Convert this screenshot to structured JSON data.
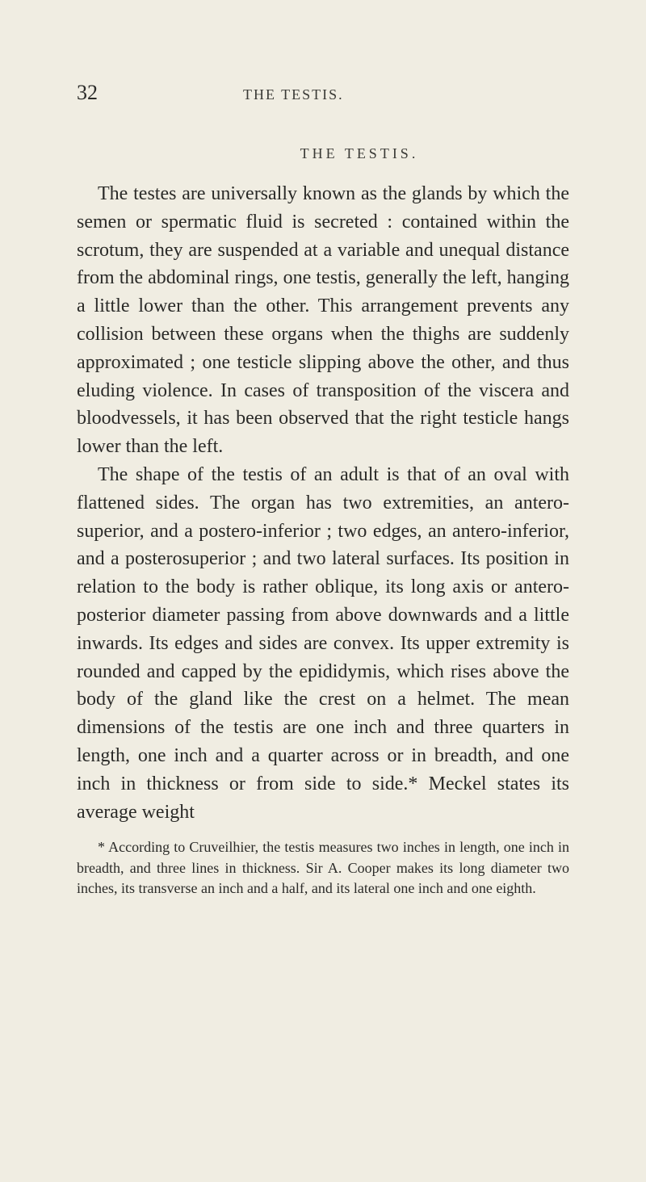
{
  "page": {
    "number": "32",
    "running_head": "THE TESTIS.",
    "section_title": "THE TESTIS.",
    "background_color": "#f0ede2",
    "text_color": "#2a2a28",
    "body_fontsize": 24,
    "header_fontsize": 18,
    "footnote_fontsize": 18,
    "page_number_fontsize": 26
  },
  "paragraphs": {
    "p1": "The testes are universally known as the glands by which the semen or spermatic fluid is secreted : contained within the scrotum, they are suspended at a variable and unequal distance from the ab­dominal rings, one testis, generally the left, hanging a little lower than the other. This arrangement prevents any collision between these organs when the thighs are suddenly approximated ; one testicle slipping above the other, and thus eluding violence. In cases of transposition of the viscera and blood­vessels, it has been observed that the right testicle hangs lower than the left.",
    "p2": "The shape of the testis of an adult is that of an oval with flattened sides. The organ has two ex­tremities, an antero-superior, and a postero-infe­rior ; two edges, an antero-inferior, and a postero­superior ; and two lateral surfaces. Its position in relation to the body is rather oblique, its long axis or antero-posterior diameter passing from above downwards and a little inwards. Its edges and sides are convex. Its upper extremity is rounded and capped by the epididymis, which rises above the body of the gland like the crest on a helmet. The mean dimensions of the testis are one inch and three quarters in length, one inch and a quarter across or in breadth, and one inch in thickness or from side to side.* Meckel states its average weight"
  },
  "footnote": {
    "text": "* According to Cruveilhier, the testis measures two inches in length, one inch in breadth, and three lines in thickness. Sir A. Cooper makes its long diameter two inches, its transverse an inch and a half, and its lateral one inch and one eighth."
  }
}
